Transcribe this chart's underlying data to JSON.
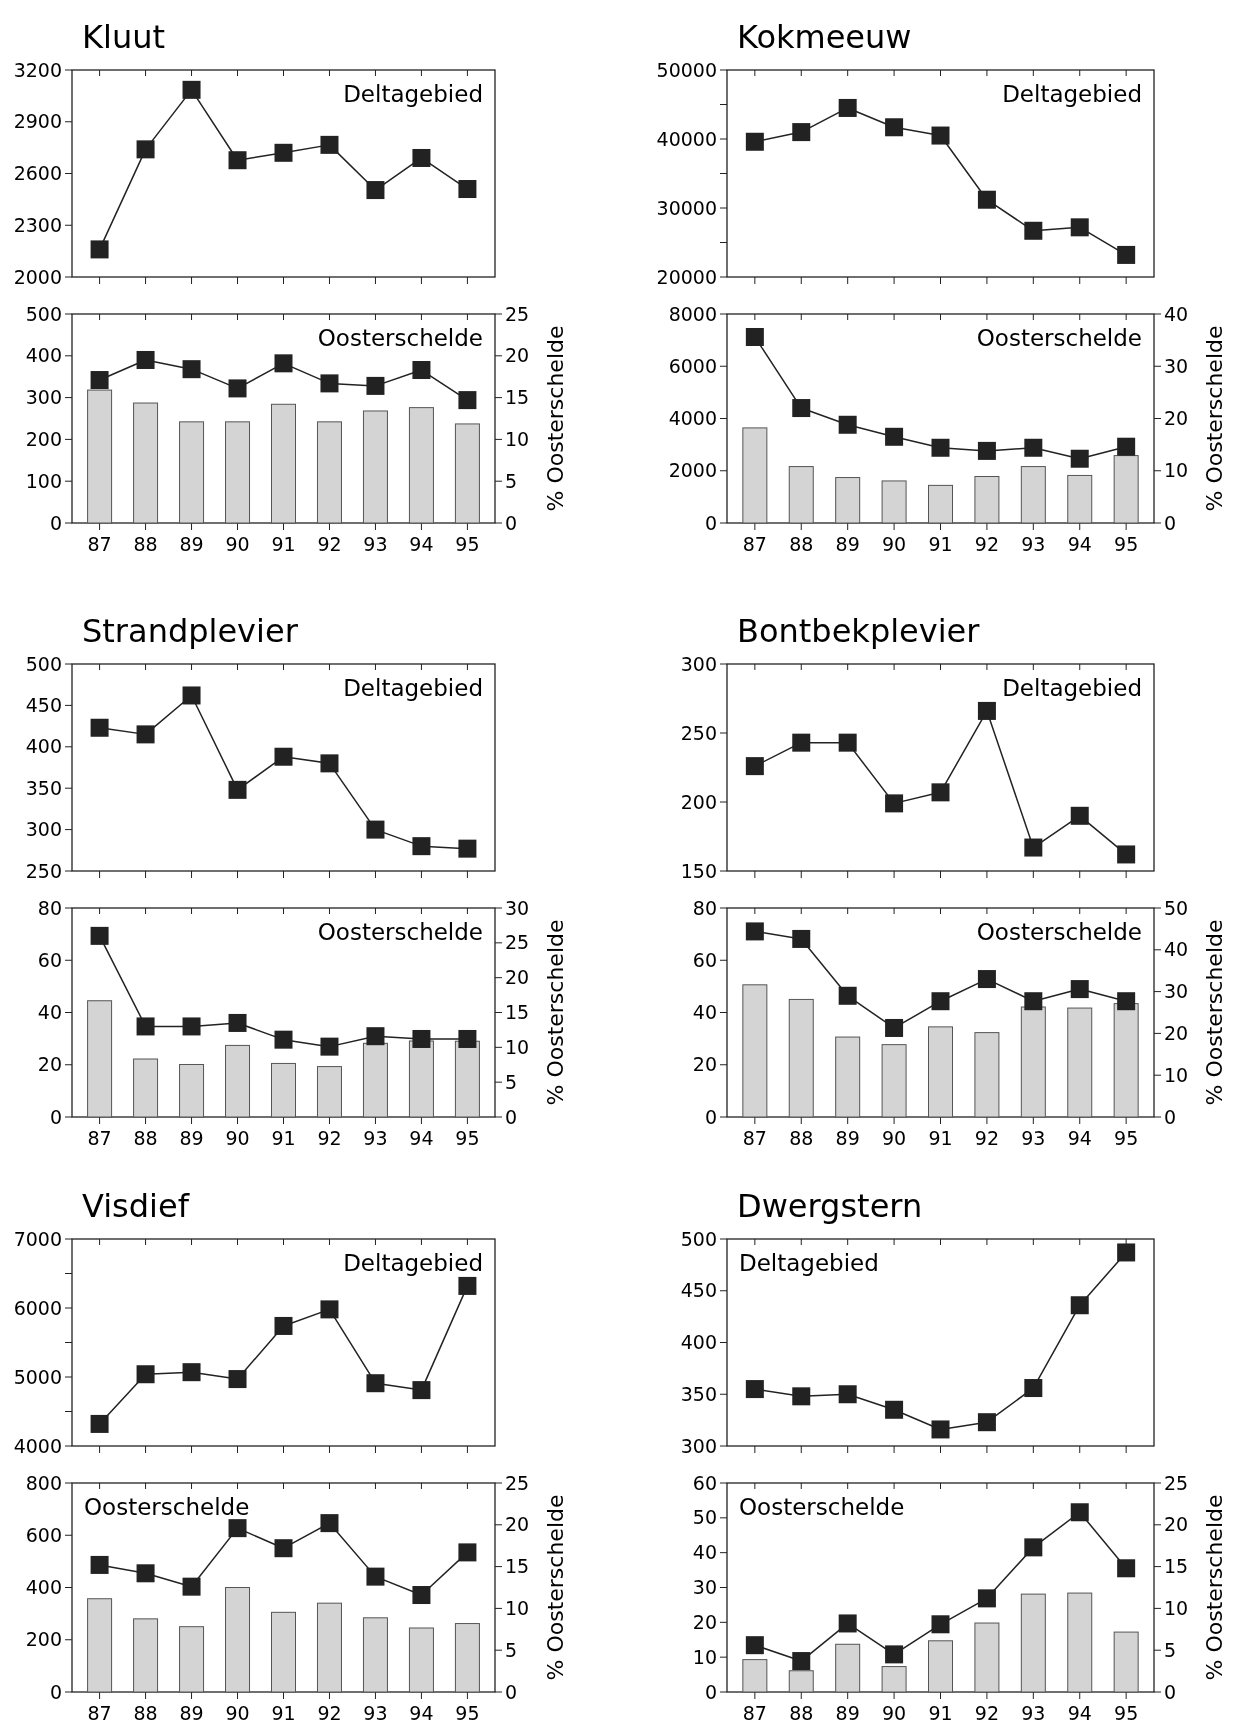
{
  "chart_data": [
    {
      "type": "line",
      "title": "Kluut",
      "annotations": [
        "Deltagebied"
      ],
      "categories": [
        "87",
        "88",
        "89",
        "90",
        "91",
        "92",
        "93",
        "94",
        "95"
      ],
      "marker": "square",
      "tick_labels": "y",
      "ylim": [
        2000,
        3200
      ],
      "yticks": [
        2000,
        2300,
        2600,
        2900,
        3200
      ],
      "series": [
        {
          "color": "#222222",
          "values": [
            2160,
            2740,
            3085,
            2677,
            2720,
            2766,
            2504,
            2690,
            2510
          ]
        }
      ]
    },
    {
      "type": "bar",
      "annotations": [
        "Oosterschelde"
      ],
      "categories": [
        "87",
        "88",
        "89",
        "90",
        "91",
        "92",
        "93",
        "94",
        "95"
      ],
      "marker": "square",
      "y2label": "% Oosterschelde",
      "ylim": [
        0,
        500
      ],
      "yticks": [
        0,
        100,
        200,
        300,
        400,
        500
      ],
      "y2lim": [
        0,
        25
      ],
      "y2ticks": [
        0,
        5,
        10,
        15,
        20,
        25
      ],
      "series": [
        {
          "color": "#d4d4d4",
          "values": [
            318,
            287,
            242,
            242,
            284,
            242,
            268,
            276,
            237
          ]
        },
        {
          "type": "line",
          "axis": "y2",
          "color": "#222222",
          "values": [
            17.1,
            19.5,
            18.4,
            16.1,
            19.1,
            16.7,
            16.4,
            18.3,
            14.7
          ]
        }
      ]
    },
    {
      "type": "line",
      "title": "Kokmeeuw",
      "annotations": [
        "Deltagebied"
      ],
      "categories": [
        "87",
        "88",
        "89",
        "90",
        "91",
        "92",
        "93",
        "94",
        "95"
      ],
      "marker": "square",
      "tick_labels": "y",
      "ylim": [
        20000,
        50000
      ],
      "yticks": [
        20000,
        {
          "value": 25000,
          "label": null
        },
        30000,
        {
          "value": 35000,
          "label": null
        },
        40000,
        {
          "value": 45000,
          "label": null
        },
        50000
      ],
      "series": [
        {
          "color": "#222222",
          "values": [
            39600,
            41000,
            44500,
            41700,
            40500,
            31200,
            26700,
            27200,
            23200
          ]
        }
      ]
    },
    {
      "type": "bar",
      "annotations": [
        "Oosterschelde"
      ],
      "categories": [
        "87",
        "88",
        "89",
        "90",
        "91",
        "92",
        "93",
        "94",
        "95"
      ],
      "marker": "square",
      "y2label": "% Oosterschelde",
      "ylim": [
        0,
        8000
      ],
      "yticks": [
        0,
        2000,
        4000,
        6000,
        8000
      ],
      "y2lim": [
        0,
        40
      ],
      "y2ticks": [
        0,
        10,
        20,
        30,
        40
      ],
      "series": [
        {
          "color": "#d4d4d4",
          "values": [
            3640,
            2160,
            1740,
            1610,
            1440,
            1780,
            2160,
            1820,
            2580
          ]
        },
        {
          "type": "line",
          "axis": "y2",
          "color": "#222222",
          "values": [
            35.6,
            22.0,
            18.8,
            16.5,
            14.4,
            13.8,
            14.4,
            12.3,
            14.6
          ]
        }
      ]
    },
    {
      "type": "line",
      "title": "Strandplevier",
      "annotations": [
        "Deltagebied"
      ],
      "categories": [
        "87",
        "88",
        "89",
        "90",
        "91",
        "92",
        "93",
        "94",
        "95"
      ],
      "marker": "square",
      "tick_labels": "y",
      "ylim": [
        250,
        500
      ],
      "yticks": [
        250,
        300,
        350,
        400,
        450,
        500
      ],
      "series": [
        {
          "color": "#222222",
          "values": [
            423,
            415,
            462,
            348,
            388,
            380,
            300,
            280,
            277
          ]
        }
      ]
    },
    {
      "type": "bar",
      "annotations": [
        "Oosterschelde"
      ],
      "categories": [
        "87",
        "88",
        "89",
        "90",
        "91",
        "92",
        "93",
        "94",
        "95"
      ],
      "marker": "square",
      "y2label": "% Oosterschelde",
      "ylim": [
        0,
        80
      ],
      "yticks": [
        0,
        20,
        40,
        60,
        80
      ],
      "y2lim": [
        0,
        30
      ],
      "y2ticks": [
        0,
        5,
        10,
        15,
        20,
        25,
        30
      ],
      "series": [
        {
          "color": "#d4d4d4",
          "values": [
            44.5,
            22.2,
            20.1,
            27.4,
            20.5,
            19.3,
            28.2,
            29.1,
            29.0
          ]
        },
        {
          "type": "line",
          "axis": "y2",
          "color": "#222222",
          "values": [
            26.0,
            13.0,
            13.0,
            13.5,
            11.1,
            10.1,
            11.6,
            11.2,
            11.2
          ]
        }
      ]
    },
    {
      "type": "line",
      "title": "Bontbekplevier",
      "annotations": [
        "Deltagebied"
      ],
      "categories": [
        "87",
        "88",
        "89",
        "90",
        "91",
        "92",
        "93",
        "94",
        "95"
      ],
      "marker": "square",
      "tick_labels": "y",
      "ylim": [
        150,
        300
      ],
      "yticks": [
        150,
        200,
        250,
        300
      ],
      "series": [
        {
          "color": "#222222",
          "values": [
            226,
            243,
            243,
            199,
            207,
            266,
            167,
            190,
            162
          ]
        }
      ]
    },
    {
      "type": "bar",
      "annotations": [
        "Oosterschelde"
      ],
      "categories": [
        "87",
        "88",
        "89",
        "90",
        "91",
        "92",
        "93",
        "94",
        "95"
      ],
      "marker": "square",
      "y2label": "% Oosterschelde",
      "ylim": [
        0,
        80
      ],
      "yticks": [
        0,
        20,
        40,
        60,
        80
      ],
      "y2lim": [
        0,
        50
      ],
      "y2ticks": [
        0,
        10,
        20,
        30,
        40,
        50
      ],
      "series": [
        {
          "color": "#d4d4d4",
          "values": [
            50.6,
            45,
            30.6,
            27.7,
            34.5,
            32.3,
            42.1,
            41.7,
            43.4
          ]
        },
        {
          "type": "line",
          "axis": "y2",
          "color": "#222222",
          "values": [
            44.4,
            42.6,
            29,
            21.3,
            27.7,
            33.0,
            27.7,
            30.6,
            27.7
          ]
        }
      ]
    },
    {
      "type": "line",
      "title": "Visdief",
      "annotations": [
        "Deltagebied"
      ],
      "categories": [
        "87",
        "88",
        "89",
        "90",
        "91",
        "92",
        "93",
        "94",
        "95"
      ],
      "marker": "square",
      "tick_labels": "y",
      "ylim": [
        4000,
        7000
      ],
      "yticks": [
        4000,
        {
          "value": 4500,
          "label": null
        },
        5000,
        {
          "value": 5500,
          "label": null
        },
        6000,
        {
          "value": 6500,
          "label": null
        },
        7000
      ],
      "series": [
        {
          "color": "#222222",
          "values": [
            4320,
            5040,
            5070,
            4970,
            5740,
            5980,
            4910,
            4810,
            6320
          ]
        }
      ]
    },
    {
      "type": "bar",
      "annotations": [
        "Oosterschelde"
      ],
      "categories": [
        "87",
        "88",
        "89",
        "90",
        "91",
        "92",
        "93",
        "94",
        "95"
      ],
      "marker": "square",
      "y2label": "% Oosterschelde",
      "ylim": [
        0,
        800
      ],
      "yticks": [
        0,
        200,
        400,
        600,
        800
      ],
      "y2lim": [
        0,
        25
      ],
      "y2ticks": [
        0,
        5,
        10,
        15,
        20,
        25
      ],
      "series": [
        {
          "color": "#d4d4d4",
          "values": [
            357,
            280,
            250,
            400,
            305,
            340,
            284,
            245,
            262
          ]
        },
        {
          "type": "line",
          "axis": "y2",
          "color": "#222222",
          "values": [
            15.2,
            14.2,
            12.6,
            19.6,
            17.2,
            20.2,
            13.8,
            11.6,
            16.7
          ]
        }
      ]
    },
    {
      "type": "line",
      "title": "Dwergstern",
      "annotations": [
        "Deltagebied"
      ],
      "categories": [
        "87",
        "88",
        "89",
        "90",
        "91",
        "92",
        "93",
        "94",
        "95"
      ],
      "marker": "square",
      "tick_labels": "y",
      "ylim": [
        300,
        500
      ],
      "yticks": [
        300,
        350,
        400,
        450,
        500
      ],
      "series": [
        {
          "color": "#222222",
          "values": [
            355,
            348,
            350,
            335,
            316,
            323,
            356,
            436,
            487
          ]
        }
      ]
    },
    {
      "type": "bar",
      "annotations": [
        "Oosterschelde"
      ],
      "categories": [
        "87",
        "88",
        "89",
        "90",
        "91",
        "92",
        "93",
        "94",
        "95"
      ],
      "marker": "square",
      "y2label": "% Oosterschelde",
      "ylim": [
        0,
        60
      ],
      "yticks": [
        0,
        10,
        20,
        30,
        40,
        50,
        60
      ],
      "y2lim": [
        0,
        25
      ],
      "y2ticks": [
        0,
        5,
        10,
        15,
        20,
        25
      ],
      "series": [
        {
          "color": "#d4d4d4",
          "values": [
            9.3,
            6.1,
            13.7,
            7.3,
            14.7,
            19.8,
            28.1,
            28.4,
            17.2
          ]
        },
        {
          "type": "line",
          "axis": "y2",
          "color": "#222222",
          "values": [
            5.6,
            3.7,
            8.2,
            4.5,
            8.1,
            11.2,
            17.3,
            21.5,
            14.8
          ]
        }
      ]
    }
  ]
}
